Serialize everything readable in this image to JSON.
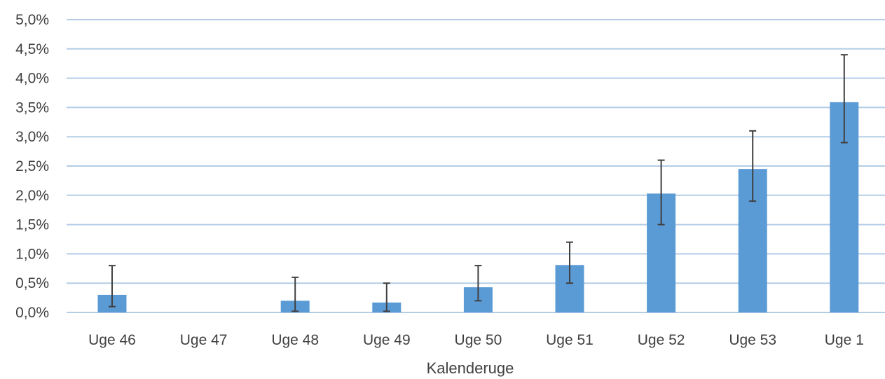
{
  "chart_data": {
    "type": "bar",
    "title": "",
    "xlabel": "Kalenderuge",
    "ylabel": "",
    "categories": [
      "Uge 46",
      "Uge 47",
      "Uge 48",
      "Uge 49",
      "Uge 50",
      "Uge 51",
      "Uge 52",
      "Uge 53",
      "Uge 1"
    ],
    "series": [
      {
        "values": [
          0.3,
          0.0,
          0.2,
          0.17,
          0.43,
          0.81,
          2.03,
          2.45,
          3.59
        ],
        "error_low": [
          0.1,
          null,
          0.02,
          0.02,
          0.2,
          0.5,
          1.5,
          1.9,
          2.9
        ],
        "error_high": [
          0.8,
          null,
          0.6,
          0.5,
          0.8,
          1.2,
          2.6,
          3.1,
          4.4
        ]
      }
    ],
    "ylim": [
      0,
      5
    ],
    "yticks": [
      0,
      0.5,
      1,
      1.5,
      2,
      2.5,
      3,
      3.5,
      4,
      4.5,
      5
    ],
    "ytick_labels": [
      "0,0%",
      "0,5%",
      "1,0%",
      "1,5%",
      "2,0%",
      "2,5%",
      "3,0%",
      "3,5%",
      "4,0%",
      "4,5%",
      "5,0%"
    ],
    "grid": true,
    "legend": "none",
    "colors": {
      "bar": "#5b9bd5",
      "grid": "#b4cde6",
      "error_bar": "#404040",
      "text": "#404040"
    }
  }
}
